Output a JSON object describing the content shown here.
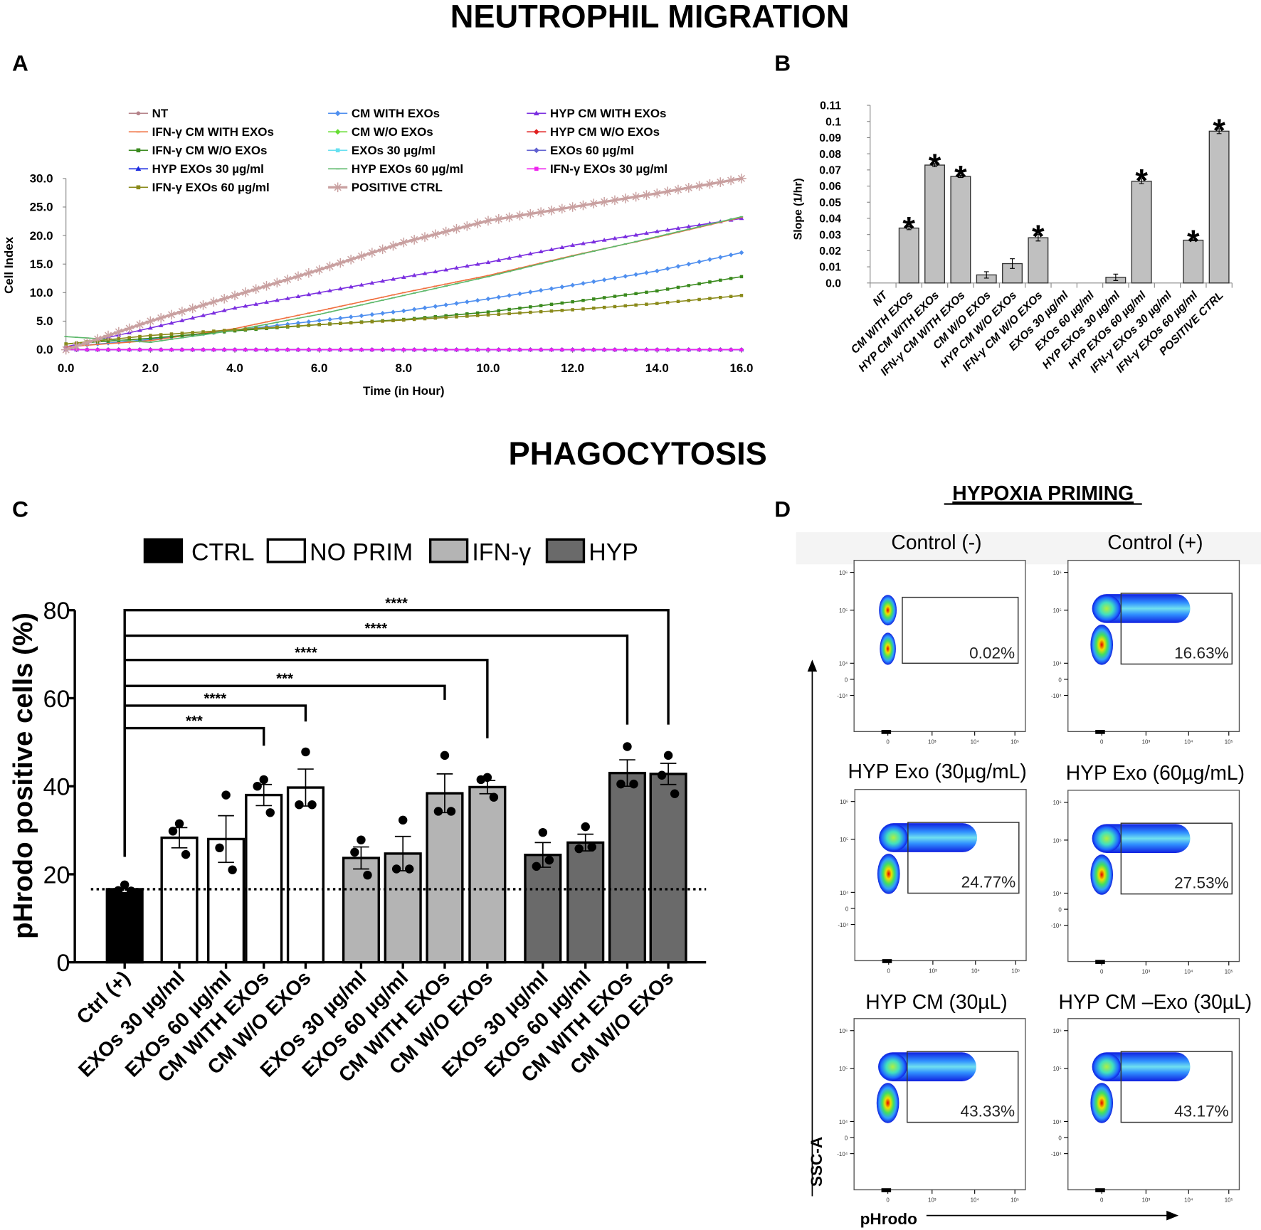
{
  "titles": {
    "migration": "NEUTROPHIL MIGRATION",
    "phagocytosis": "PHAGOCYTOSIS",
    "hypoxia": "HYPOXIA PRIMING"
  },
  "panel_labels": {
    "a": "A",
    "b": "B",
    "c": "C",
    "d": "D"
  },
  "chart_data": [
    {
      "type": "line",
      "panel": "A",
      "xlabel": "Time (in Hour)",
      "ylabel": "Cell Index",
      "xlim": [
        0,
        16
      ],
      "ylim": [
        0,
        30
      ],
      "xticks": [
        "0.0",
        "2.0",
        "4.0",
        "6.0",
        "8.0",
        "10.0",
        "12.0",
        "14.0",
        "16.0"
      ],
      "yticks": [
        "0.0",
        "5.0",
        "10.0",
        "15.0",
        "20.0",
        "25.0",
        "30.0"
      ],
      "x": [
        0,
        2,
        4,
        6,
        8,
        10,
        12,
        14,
        16
      ],
      "legend": "top",
      "series": [
        {
          "name": "NT",
          "color": "#b5838a",
          "marker": "circle",
          "values": [
            0,
            0,
            0,
            0,
            0,
            0,
            0,
            0,
            0
          ]
        },
        {
          "name": "CM WITH EXOs",
          "color": "#4f8fef",
          "marker": "diamond",
          "values": [
            0.5,
            1.8,
            3.4,
            5.1,
            6.8,
            8.9,
            11.3,
            13.8,
            17.0
          ]
        },
        {
          "name": "HYP CM WITH EXOs",
          "color": "#7b2fe0",
          "marker": "triangle",
          "values": [
            0.5,
            3.8,
            7.3,
            10.0,
            12.7,
            15.3,
            18.3,
            20.7,
            23.0
          ]
        },
        {
          "name": "IFN-γ CM WITH EXOs",
          "color": "#f07040",
          "marker": "dash",
          "values": [
            0.5,
            1.6,
            3.7,
            6.8,
            10.0,
            13.0,
            16.5,
            19.7,
            23.2
          ]
        },
        {
          "name": "CM W/O EXOs",
          "color": "#66dd33",
          "marker": "diamond",
          "values": [
            0,
            0,
            0,
            0,
            0,
            0,
            0,
            0,
            0
          ]
        },
        {
          "name": "HYP CM W/O EXOs",
          "color": "#e02020",
          "marker": "diamond",
          "values": [
            0,
            0,
            0,
            0,
            0,
            0,
            0,
            0,
            0
          ]
        },
        {
          "name": "IFN-γ CM W/O EXOs",
          "color": "#3a8a1e",
          "marker": "square",
          "values": [
            1.0,
            2.0,
            3.3,
            4.4,
            5.3,
            6.6,
            8.4,
            10.3,
            12.8
          ]
        },
        {
          "name": "EXOs 30 µg/ml",
          "color": "#66e0f0",
          "marker": "square",
          "values": [
            0,
            0,
            0,
            0,
            0,
            0,
            0,
            0,
            0
          ]
        },
        {
          "name": "EXOs 60 µg/ml",
          "color": "#6060d0",
          "marker": "diamond",
          "values": [
            0,
            0,
            0,
            0,
            0,
            0,
            0,
            0,
            0
          ]
        },
        {
          "name": "HYP EXOs 30 µg/ml",
          "color": "#1a2ae0",
          "marker": "triangle",
          "values": [
            0,
            0,
            0,
            0,
            0,
            0,
            0,
            0,
            0
          ]
        },
        {
          "name": "HYP EXOs 60 µg/ml",
          "color": "#5cb86a",
          "marker": "dash",
          "values": [
            2.3,
            1.3,
            3.4,
            6.2,
            9.5,
            12.8,
            16.4,
            19.8,
            23.3
          ]
        },
        {
          "name": "IFN-γ EXOs 30 µg/ml",
          "color": "#ee22ee",
          "marker": "square",
          "values": [
            0,
            0,
            0,
            0,
            0,
            0,
            0,
            0,
            0
          ]
        },
        {
          "name": "IFN-γ EXOs 60 µg/ml",
          "color": "#8a8a1a",
          "marker": "square",
          "values": [
            1.0,
            2.5,
            3.5,
            4.4,
            5.2,
            6.1,
            7.0,
            8.1,
            9.5
          ]
        },
        {
          "name": "POSITIVE CTRL",
          "color": "#c9a0a0",
          "marker": "star",
          "values": [
            0,
            5.0,
            9.5,
            14.0,
            18.8,
            22.6,
            25.0,
            27.4,
            30.0
          ]
        }
      ]
    },
    {
      "type": "bar",
      "panel": "B",
      "ylabel": "Slope (1/hr)",
      "ylim": [
        0,
        0.11
      ],
      "yticks": [
        "0.0",
        "0.01",
        "0.02",
        "0.03",
        "0.04",
        "0.05",
        "0.06",
        "0.07",
        "0.08",
        "0.09",
        "0.1",
        "0.11"
      ],
      "categories": [
        "NT",
        "CM WITH EXOs",
        "HYP CM WITH EXOs",
        "IFN-γ CM WITH EXOs",
        "CM W/O EXOs",
        "HYP CM W/O EXOs",
        "IFN-γ CM W/O EXOs",
        "EXOs 30 µg/ml",
        "EXOs 60 µg/ml",
        "HYP EXOs 30 µg/ml",
        "HYP EXOs 60 µg/ml",
        "IFN-γ EXOs 30 µg/ml",
        "IFN-γ EXOs 60 µg/ml",
        "POSITIVE CTRL"
      ],
      "values": [
        0,
        0.034,
        0.073,
        0.066,
        0.005,
        0.012,
        0.028,
        0,
        0,
        0.0035,
        0.063,
        0,
        0.0265,
        0.094
      ],
      "errors": [
        0,
        0.001,
        0.001,
        0.0007,
        0.002,
        0.003,
        0.002,
        0,
        0,
        0.002,
        0.0015,
        0,
        0.0003,
        0.0015
      ],
      "significance": [
        "",
        "*",
        "*",
        "*",
        "",
        "",
        "*",
        "",
        "",
        "",
        "*",
        "",
        "*",
        "*"
      ],
      "bar_color": "#c0c0c0"
    },
    {
      "type": "bar",
      "panel": "C",
      "ylabel": "pHrodo positive cells (%)",
      "ylim": [
        0,
        80
      ],
      "yticks": [
        "0",
        "20",
        "40",
        "60",
        "80"
      ],
      "legend": [
        {
          "label": "CTRL",
          "color": "#000000"
        },
        {
          "label": "NO PRIM",
          "color": "#ffffff"
        },
        {
          "label": "IFN-γ",
          "color": "#b4b4b4"
        },
        {
          "label": "HYP",
          "color": "#6a6a6a"
        }
      ],
      "categories": [
        "Ctrl (+)",
        "EXOs 30 µg/ml",
        "EXOs 60 µg/ml",
        "CM WITH EXOs",
        "CM W/O EXOs",
        "EXOs 30 µg/ml",
        "EXOs 60 µg/ml",
        "CM WITH EXOs",
        "CM W/O EXOs",
        "EXOs 30 µg/ml",
        "EXOs 60 µg/ml",
        "CM WITH EXOs",
        "CM W/O EXOs"
      ],
      "groups": [
        0,
        1,
        1,
        1,
        1,
        2,
        2,
        2,
        2,
        3,
        3,
        3,
        3
      ],
      "values": [
        16.6,
        28.3,
        28.0,
        38.0,
        39.7,
        23.7,
        24.7,
        38.4,
        39.8,
        24.4,
        27.2,
        43.0,
        42.8
      ],
      "errors": [
        0.5,
        2.3,
        5.3,
        2.4,
        4.2,
        2.5,
        3.9,
        4.4,
        1.5,
        2.8,
        1.9,
        3.0,
        2.4
      ],
      "points": [
        [
          17.6,
          16.3,
          16.2
        ],
        [
          31.5,
          29.8,
          24.5
        ],
        [
          38.0,
          26.0,
          21.0
        ],
        [
          41.5,
          40.0,
          34.0
        ],
        [
          47.8,
          35.8,
          35.8
        ],
        [
          27.8,
          25.0,
          19.8
        ],
        [
          32.3,
          21.2,
          21.2
        ],
        [
          47.0,
          34.3,
          34.3
        ],
        [
          42.0,
          41.5,
          37.5
        ],
        [
          29.5,
          21.8,
          23.2
        ],
        [
          30.8,
          25.8,
          26.2
        ],
        [
          49.0,
          40.5,
          40.5
        ],
        [
          47.0,
          42.5,
          38.3
        ]
      ],
      "reference_line": 16.6,
      "comparisons": [
        {
          "from": 0,
          "to": 3,
          "label": "***",
          "level": 53.2,
          "leg_end": 49.2
        },
        {
          "from": 0,
          "to": 4,
          "label": "****",
          "level": 58.3,
          "leg_end": 54.7
        },
        {
          "from": 0,
          "to": 7,
          "label": "***",
          "level": 62.8,
          "leg_end": 59.6
        },
        {
          "from": 0,
          "to": 8,
          "label": "****",
          "level": 68.7,
          "leg_end": 50.9
        },
        {
          "from": 0,
          "to": 11,
          "label": "****",
          "level": 74.2,
          "leg_end": 54.0
        },
        {
          "from": 0,
          "to": 12,
          "label": "****",
          "level": 80.0,
          "leg_end": 54.0
        }
      ]
    }
  ],
  "flow": {
    "x_axis_label": "pHrodo",
    "y_axis_label": "SSC-A",
    "y_ticks": [
      "10⁶",
      "10⁵",
      "10⁴",
      "0",
      "-10⁴"
    ],
    "x_ticks": [
      "0",
      "10³",
      "10⁴",
      "10⁵"
    ],
    "plots": [
      {
        "title": "Control (-)",
        "percent": "0.02%",
        "positive": false
      },
      {
        "title": "Control (+)",
        "percent": "16.63%",
        "positive": true
      },
      {
        "title": "HYP Exo (30µg/mL)",
        "percent": "24.77%",
        "positive": true
      },
      {
        "title": "HYP Exo (60µg/mL)",
        "percent": "27.53%",
        "positive": true
      },
      {
        "title": "HYP CM (30µL)",
        "percent": "43.33%",
        "positive": true
      },
      {
        "title": "HYP CM –Exo (30µL)",
        "percent": "43.17%",
        "positive": true
      }
    ]
  }
}
